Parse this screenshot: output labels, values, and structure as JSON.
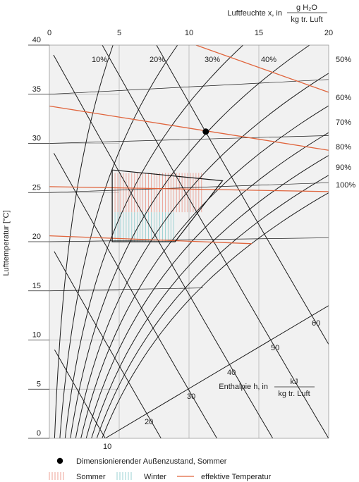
{
  "chart_data": {
    "type": "psychrometric",
    "x_axis": {
      "label_prefix": "Luftfeuchte x, in",
      "unit_num": "g H₂O",
      "unit_den": "kg tr. Luft",
      "range": [
        0,
        20
      ],
      "ticks": [
        "0",
        "5",
        "10",
        "15",
        "20"
      ]
    },
    "y_axis": {
      "label": "Lufttemperatur [°C]",
      "range": [
        0,
        40
      ],
      "ticks": [
        "0",
        "5",
        "10",
        "15",
        "20",
        "25",
        "30",
        "35",
        "40"
      ]
    },
    "rh_curves": [
      {
        "label": "10%",
        "rh": 0.1
      },
      {
        "label": "20%",
        "rh": 0.2
      },
      {
        "label": "30%",
        "rh": 0.3
      },
      {
        "label": "40%",
        "rh": 0.4
      },
      {
        "label": "50%",
        "rh": 0.5
      },
      {
        "label": "60%",
        "rh": 0.6
      },
      {
        "label": "70%",
        "rh": 0.7
      },
      {
        "label": "80%",
        "rh": 0.8
      },
      {
        "label": "90%",
        "rh": 0.9
      },
      {
        "label": "100%",
        "rh": 1.0
      }
    ],
    "enthalpy": {
      "label_prefix": "Enthalpie h, in",
      "unit_num": "kJ",
      "unit_den": "kg tr. Luft",
      "lines": [
        {
          "label": "10",
          "h": 10
        },
        {
          "label": "20",
          "h": 20
        },
        {
          "label": "30",
          "h": 30
        },
        {
          "label": "40",
          "h": 40
        },
        {
          "label": "50",
          "h": 50
        },
        {
          "label": "60",
          "h": 60
        }
      ]
    },
    "comfort_zone": {
      "polygon": [
        [
          4.5,
          27.3
        ],
        [
          12.4,
          26.2
        ],
        [
          9.0,
          20.0
        ],
        [
          4.5,
          20.0
        ]
      ],
      "summer_hatch": {
        "x_range": [
          4.5,
          11.0
        ],
        "t_range": [
          23.0,
          27.0
        ]
      },
      "winter_hatch": {
        "x_range": [
          4.5,
          9.0
        ],
        "t_range": [
          20.0,
          23.0
        ]
      }
    },
    "design_point": {
      "x": 11.2,
      "t": 31.2
    },
    "effective_temperature_lines": [
      {
        "x1": 0,
        "t1": 33.8,
        "x2": 20,
        "t2": 29.3
      },
      {
        "x1": 10.5,
        "t1": 40.0,
        "x2": 20,
        "t2": 35.2
      },
      {
        "x1": 0,
        "t1": 25.6,
        "x2": 20,
        "t2": 25.1
      },
      {
        "x1": 0,
        "t1": 20.6,
        "x2": 14.5,
        "t2": 19.8
      }
    ],
    "legend": [
      {
        "symbol": "dot",
        "label": "Dimensionierender Außenzustand, Sommer"
      },
      {
        "symbol": "summer-hatch",
        "label": "Sommer"
      },
      {
        "symbol": "winter-hatch",
        "label": "Winter"
      },
      {
        "symbol": "line",
        "label": "effektive Temperatur"
      }
    ],
    "colors": {
      "plot_bg": "#f1f1f1",
      "grid": "#b5b5b5",
      "curve": "#1c1c1c",
      "effective": "#e0643c",
      "summer": "#e98a7a",
      "winter": "#7fc6c8",
      "point": "#000000"
    },
    "grid": true
  }
}
